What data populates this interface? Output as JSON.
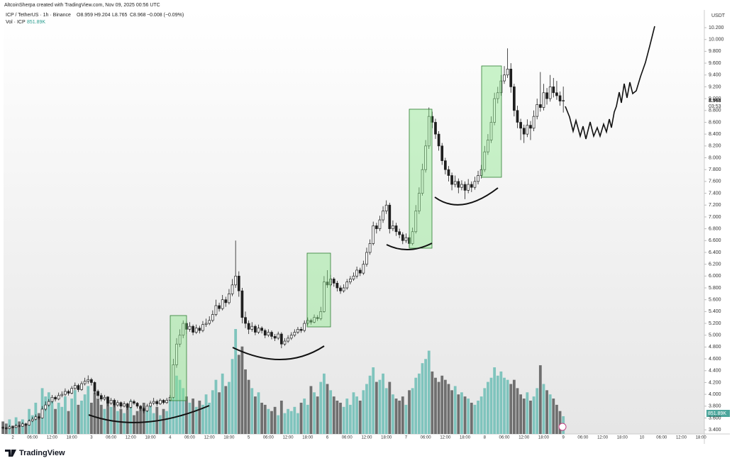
{
  "chart_data": {
    "type": "candlestick",
    "attribution": "AltcoinSherpa created with TradingView.com, Nov 09, 2025 00:56 UTC",
    "symbol": "ICP / TetherUS · 1h · Binance",
    "readout": [
      "O8.959",
      "H9.204",
      "L8.765",
      "C8.968",
      "−0.008 (−0.09%)"
    ],
    "volume_title": "Vol · ICP",
    "volume_readout": "851.89K",
    "currency": "USDT",
    "last_price_label": "8.968",
    "countdown": "03:53",
    "brand": "TradingView",
    "up_color": "#ffffff",
    "down_color": "#1e1e1e",
    "volume_up_color": "#7fc4bd",
    "volume_down_color": "#6f6f6f",
    "grid": false,
    "ylim": [
      3.33,
      10.5
    ],
    "yticks": [
      {
        "value": 3.4,
        "label": "3.400"
      },
      {
        "value": 3.6,
        "label": "3.600"
      },
      {
        "value": 3.8,
        "label": "3.800"
      },
      {
        "value": 4.0,
        "label": "4.000"
      },
      {
        "value": 4.2,
        "label": "4.200"
      },
      {
        "value": 4.4,
        "label": "4.400"
      },
      {
        "value": 4.6,
        "label": "4.600"
      },
      {
        "value": 4.8,
        "label": "4.800"
      },
      {
        "value": 5.0,
        "label": "5.000"
      },
      {
        "value": 5.2,
        "label": "5.200"
      },
      {
        "value": 5.4,
        "label": "5.400"
      },
      {
        "value": 5.6,
        "label": "5.600"
      },
      {
        "value": 5.8,
        "label": "5.800"
      },
      {
        "value": 6.0,
        "label": "6.000"
      },
      {
        "value": 6.2,
        "label": "6.200"
      },
      {
        "value": 6.4,
        "label": "6.400"
      },
      {
        "value": 6.6,
        "label": "6.600"
      },
      {
        "value": 6.8,
        "label": "6.800"
      },
      {
        "value": 7.0,
        "label": "7.000"
      },
      {
        "value": 7.2,
        "label": "7.200"
      },
      {
        "value": 7.4,
        "label": "7.400"
      },
      {
        "value": 7.6,
        "label": "7.600"
      },
      {
        "value": 7.8,
        "label": "7.800"
      },
      {
        "value": 8.0,
        "label": "8.000"
      },
      {
        "value": 8.2,
        "label": "8.200"
      },
      {
        "value": 8.4,
        "label": "8.400"
      },
      {
        "value": 8.6,
        "label": "8.600"
      },
      {
        "value": 8.8,
        "label": "8.800"
      },
      {
        "value": 9.0,
        "label": "9.000"
      },
      {
        "value": 9.2,
        "label": "9.200"
      },
      {
        "value": 9.4,
        "label": "9.400"
      },
      {
        "value": 9.6,
        "label": "9.600"
      },
      {
        "value": 9.8,
        "label": "9.800"
      },
      {
        "value": 10.0,
        "label": "10.000"
      },
      {
        "value": 10.2,
        "label": "10.200"
      }
    ],
    "xtick_labels": [
      "2",
      "06:00",
      "12:00",
      "18:00",
      "3",
      "06:00",
      "12:00",
      "18:00",
      "4",
      "06:00",
      "12:00",
      "18:00",
      "5",
      "06:00",
      "12:00",
      "18:00",
      "6",
      "06:00",
      "12:00",
      "18:00",
      "7",
      "06:00",
      "12:00",
      "18:00",
      "8",
      "06:00",
      "12:00",
      "18:00",
      "9",
      "06:00",
      "12:00",
      "18:00",
      "10",
      "06:00",
      "12:00",
      "18:00"
    ],
    "candles": [
      [
        3.44,
        3.46,
        3.41,
        3.43
      ],
      [
        3.43,
        3.45,
        3.4,
        3.42
      ],
      [
        3.42,
        3.48,
        3.41,
        3.45
      ],
      [
        3.45,
        3.47,
        3.42,
        3.44
      ],
      [
        3.44,
        3.5,
        3.43,
        3.47
      ],
      [
        3.47,
        3.49,
        3.44,
        3.46
      ],
      [
        3.46,
        3.53,
        3.45,
        3.5
      ],
      [
        3.5,
        3.52,
        3.46,
        3.48
      ],
      [
        3.48,
        3.58,
        3.47,
        3.55
      ],
      [
        3.55,
        3.62,
        3.53,
        3.58
      ],
      [
        3.58,
        3.66,
        3.56,
        3.62
      ],
      [
        3.62,
        3.64,
        3.57,
        3.6
      ],
      [
        3.6,
        3.8,
        3.59,
        3.75
      ],
      [
        3.75,
        3.88,
        3.72,
        3.82
      ],
      [
        3.82,
        3.92,
        3.79,
        3.88
      ],
      [
        3.88,
        3.99,
        3.85,
        3.95
      ],
      [
        3.95,
        3.98,
        3.88,
        3.92
      ],
      [
        3.92,
        4.03,
        3.9,
        3.98
      ],
      [
        3.98,
        4.05,
        3.95,
        4.0
      ],
      [
        4.0,
        4.1,
        3.97,
        4.05
      ],
      [
        4.05,
        4.08,
        3.98,
        4.02
      ],
      [
        4.02,
        4.14,
        4.0,
        4.1
      ],
      [
        4.1,
        4.2,
        4.07,
        4.15
      ],
      [
        4.15,
        4.18,
        4.04,
        4.08
      ],
      [
        4.08,
        4.22,
        4.06,
        4.18
      ],
      [
        4.18,
        4.28,
        4.15,
        4.22
      ],
      [
        4.22,
        4.32,
        4.18,
        4.25
      ],
      [
        4.25,
        4.28,
        4.15,
        4.2
      ],
      [
        4.2,
        4.22,
        4.0,
        4.05
      ],
      [
        4.05,
        4.08,
        3.94,
        3.98
      ],
      [
        3.98,
        4.02,
        3.88,
        3.92
      ],
      [
        3.92,
        3.99,
        3.89,
        3.95
      ],
      [
        3.95,
        3.97,
        3.8,
        3.85
      ],
      [
        3.85,
        3.94,
        3.82,
        3.9
      ],
      [
        3.9,
        3.93,
        3.78,
        3.82
      ],
      [
        3.82,
        3.9,
        3.79,
        3.86
      ],
      [
        3.86,
        3.88,
        3.76,
        3.8
      ],
      [
        3.8,
        3.88,
        3.78,
        3.84
      ],
      [
        3.84,
        3.86,
        3.74,
        3.78
      ],
      [
        3.78,
        3.92,
        3.76,
        3.88
      ],
      [
        3.88,
        3.91,
        3.82,
        3.85
      ],
      [
        3.85,
        3.87,
        3.76,
        3.8
      ],
      [
        3.8,
        3.82,
        3.72,
        3.76
      ],
      [
        3.76,
        3.79,
        3.68,
        3.72
      ],
      [
        3.72,
        3.84,
        3.7,
        3.8
      ],
      [
        3.8,
        3.89,
        3.78,
        3.85
      ],
      [
        3.85,
        3.94,
        3.82,
        3.88
      ],
      [
        3.88,
        3.91,
        3.8,
        3.84
      ],
      [
        3.84,
        3.93,
        3.82,
        3.9
      ],
      [
        3.9,
        3.92,
        3.83,
        3.86
      ],
      [
        3.86,
        3.94,
        3.84,
        3.9
      ],
      [
        3.9,
        3.99,
        3.88,
        3.95
      ],
      [
        3.95,
        4.6,
        3.93,
        4.5
      ],
      [
        4.5,
        4.95,
        4.45,
        4.85
      ],
      [
        4.85,
        5.1,
        4.8,
        5.0
      ],
      [
        5.0,
        5.25,
        4.95,
        5.2
      ],
      [
        5.2,
        5.24,
        5.02,
        5.1
      ],
      [
        5.1,
        5.22,
        5.06,
        5.15
      ],
      [
        5.15,
        5.18,
        5.0,
        5.05
      ],
      [
        5.05,
        5.18,
        5.02,
        5.12
      ],
      [
        5.12,
        5.16,
        5.03,
        5.08
      ],
      [
        5.08,
        5.24,
        5.05,
        5.18
      ],
      [
        5.18,
        5.28,
        5.14,
        5.2
      ],
      [
        5.2,
        5.32,
        5.17,
        5.25
      ],
      [
        5.25,
        5.42,
        5.22,
        5.35
      ],
      [
        5.35,
        5.6,
        5.32,
        5.5
      ],
      [
        5.5,
        5.55,
        5.4,
        5.45
      ],
      [
        5.45,
        5.68,
        5.42,
        5.6
      ],
      [
        5.6,
        5.65,
        5.48,
        5.55
      ],
      [
        5.55,
        5.78,
        5.52,
        5.7
      ],
      [
        5.7,
        5.95,
        5.66,
        5.85
      ],
      [
        5.85,
        6.6,
        5.8,
        6.0
      ],
      [
        6.0,
        6.08,
        5.65,
        5.75
      ],
      [
        5.75,
        5.8,
        5.2,
        5.3
      ],
      [
        5.3,
        5.4,
        5.12,
        5.2
      ],
      [
        5.2,
        5.25,
        5.02,
        5.1
      ],
      [
        5.1,
        5.22,
        5.06,
        5.15
      ],
      [
        5.15,
        5.18,
        5.0,
        5.05
      ],
      [
        5.05,
        5.18,
        5.02,
        5.12
      ],
      [
        5.12,
        5.15,
        5.03,
        5.08
      ],
      [
        5.08,
        5.11,
        4.95,
        5.0
      ],
      [
        5.0,
        5.1,
        4.97,
        5.05
      ],
      [
        5.05,
        5.08,
        4.93,
        4.98
      ],
      [
        4.98,
        5.02,
        4.9,
        4.95
      ],
      [
        4.95,
        5.06,
        4.92,
        5.02
      ],
      [
        5.02,
        5.05,
        4.78,
        4.85
      ],
      [
        4.85,
        4.95,
        4.82,
        4.9
      ],
      [
        4.9,
        5.0,
        4.87,
        4.95
      ],
      [
        4.95,
        5.05,
        4.92,
        5.0
      ],
      [
        5.0,
        5.1,
        4.97,
        5.05
      ],
      [
        5.05,
        5.14,
        5.02,
        5.1
      ],
      [
        5.1,
        5.14,
        5.04,
        5.08
      ],
      [
        5.08,
        5.25,
        5.05,
        5.2
      ],
      [
        5.2,
        5.3,
        5.16,
        5.25
      ],
      [
        5.25,
        5.28,
        5.18,
        5.22
      ],
      [
        5.22,
        5.35,
        5.2,
        5.3
      ],
      [
        5.3,
        5.34,
        5.24,
        5.28
      ],
      [
        5.28,
        5.48,
        5.25,
        5.4
      ],
      [
        5.4,
        6.0,
        5.38,
        5.9
      ],
      [
        5.9,
        6.1,
        5.8,
        5.85
      ],
      [
        5.85,
        6.02,
        5.82,
        5.95
      ],
      [
        5.95,
        5.98,
        5.82,
        5.88
      ],
      [
        5.88,
        5.92,
        5.74,
        5.8
      ],
      [
        5.8,
        5.84,
        5.7,
        5.75
      ],
      [
        5.75,
        5.86,
        5.72,
        5.8
      ],
      [
        5.8,
        5.95,
        5.77,
        5.9
      ],
      [
        5.9,
        6.0,
        5.86,
        5.95
      ],
      [
        5.95,
        6.06,
        5.92,
        6.0
      ],
      [
        6.0,
        6.16,
        5.96,
        6.1
      ],
      [
        6.1,
        6.14,
        6.0,
        6.05
      ],
      [
        6.05,
        6.26,
        6.02,
        6.2
      ],
      [
        6.2,
        6.48,
        6.16,
        6.4
      ],
      [
        6.4,
        6.62,
        6.36,
        6.55
      ],
      [
        6.55,
        6.92,
        6.52,
        6.85
      ],
      [
        6.85,
        6.9,
        6.72,
        6.8
      ],
      [
        6.8,
        7.02,
        6.76,
        6.95
      ],
      [
        6.95,
        7.18,
        6.9,
        7.1
      ],
      [
        7.1,
        7.28,
        7.05,
        7.2
      ],
      [
        7.2,
        7.24,
        6.72,
        6.8
      ],
      [
        6.8,
        6.94,
        6.76,
        6.85
      ],
      [
        6.85,
        6.9,
        6.68,
        6.75
      ],
      [
        6.75,
        6.8,
        6.64,
        6.7
      ],
      [
        6.7,
        6.74,
        6.54,
        6.6
      ],
      [
        6.6,
        6.72,
        6.56,
        6.65
      ],
      [
        6.65,
        6.7,
        6.48,
        6.55
      ],
      [
        6.55,
        6.82,
        6.52,
        6.75
      ],
      [
        6.75,
        7.2,
        6.72,
        7.1
      ],
      [
        7.1,
        7.5,
        7.05,
        7.4
      ],
      [
        7.4,
        7.9,
        7.36,
        7.8
      ],
      [
        7.8,
        8.3,
        7.75,
        8.2
      ],
      [
        8.2,
        8.85,
        8.15,
        8.7
      ],
      [
        8.7,
        8.78,
        8.5,
        8.6
      ],
      [
        8.6,
        8.66,
        8.32,
        8.4
      ],
      [
        8.4,
        8.45,
        8.12,
        8.2
      ],
      [
        8.2,
        8.25,
        7.88,
        7.95
      ],
      [
        7.95,
        8.0,
        7.72,
        7.8
      ],
      [
        7.8,
        7.86,
        7.6,
        7.7
      ],
      [
        7.7,
        7.75,
        7.45,
        7.55
      ],
      [
        7.55,
        7.7,
        7.5,
        7.6
      ],
      [
        7.6,
        7.65,
        7.4,
        7.5
      ],
      [
        7.5,
        7.62,
        7.45,
        7.55
      ],
      [
        7.55,
        7.6,
        7.3,
        7.45
      ],
      [
        7.45,
        7.64,
        7.4,
        7.55
      ],
      [
        7.55,
        7.6,
        7.42,
        7.5
      ],
      [
        7.5,
        7.68,
        7.46,
        7.6
      ],
      [
        7.6,
        7.78,
        7.55,
        7.7
      ],
      [
        7.7,
        7.88,
        7.65,
        7.8
      ],
      [
        7.8,
        8.2,
        7.76,
        8.1
      ],
      [
        8.1,
        8.4,
        8.05,
        8.3
      ],
      [
        8.3,
        8.7,
        8.25,
        8.6
      ],
      [
        8.6,
        9.1,
        8.55,
        9.0
      ],
      [
        9.0,
        9.2,
        8.92,
        9.1
      ],
      [
        9.1,
        9.4,
        9.05,
        9.3
      ],
      [
        9.3,
        9.55,
        9.25,
        9.4
      ],
      [
        9.4,
        9.85,
        9.35,
        9.5
      ],
      [
        9.5,
        9.6,
        9.1,
        9.2
      ],
      [
        9.2,
        9.25,
        8.7,
        8.8
      ],
      [
        8.8,
        8.88,
        8.5,
        8.6
      ],
      [
        8.6,
        8.66,
        8.3,
        8.5
      ],
      [
        8.5,
        8.56,
        8.25,
        8.4
      ],
      [
        8.4,
        8.65,
        8.35,
        8.55
      ],
      [
        8.55,
        8.62,
        8.3,
        8.5
      ],
      [
        8.5,
        8.8,
        8.45,
        8.7
      ],
      [
        8.7,
        9.0,
        8.65,
        8.9
      ],
      [
        8.9,
        9.45,
        8.78,
        8.85
      ],
      [
        8.85,
        9.25,
        8.8,
        9.1
      ],
      [
        9.1,
        9.18,
        8.9,
        9.0
      ],
      [
        9.0,
        9.4,
        8.95,
        9.2
      ],
      [
        9.2,
        9.35,
        9.02,
        9.1
      ],
      [
        9.1,
        9.3,
        8.98,
        9.05
      ],
      [
        9.05,
        9.12,
        8.88,
        8.959
      ],
      [
        8.959,
        9.204,
        8.765,
        8.968
      ]
    ],
    "volume": [
      600,
      500,
      700,
      400,
      800,
      600,
      700,
      500,
      1200,
      900,
      1500,
      1000,
      2200,
      1800,
      2000,
      1600,
      1200,
      1500,
      1300,
      1800,
      1100,
      1700,
      2100,
      1400,
      1600,
      1900,
      2300,
      1500,
      2000,
      1700,
      1400,
      1200,
      1800,
      1300,
      1500,
      1100,
      1200,
      1000,
      1400,
      1600,
      900,
      1100,
      1300,
      1500,
      1200,
      1400,
      1000,
      1300,
      900,
      1200,
      1100,
      1600,
      3200,
      2800,
      2600,
      2200,
      1800,
      1500,
      1700,
      1300,
      1600,
      1400,
      1900,
      1500,
      2100,
      2600,
      2000,
      2900,
      2300,
      2500,
      3600,
      5040,
      3800,
      4200,
      3100,
      2600,
      2200,
      1800,
      2000,
      1500,
      1400,
      1200,
      1100,
      1300,
      900,
      1600,
      1000,
      1200,
      1100,
      1300,
      1000,
      1500,
      1700,
      1400,
      2300,
      2000,
      1800,
      2500,
      2900,
      2400,
      2100,
      1800,
      1600,
      1500,
      1300,
      1700,
      1400,
      2000,
      1800,
      1600,
      2100,
      2400,
      2800,
      3200,
      2500,
      2600,
      2900,
      2200,
      2500,
      1900,
      1700,
      1600,
      1800,
      1400,
      2100,
      2200,
      2700,
      2900,
      3400,
      3600,
      4000,
      3000,
      2700,
      2500,
      2800,
      2600,
      2400,
      2100,
      2300,
      1900,
      2000,
      1800,
      1700,
      1500,
      1400,
      1600,
      1800,
      2200,
      2500,
      2700,
      3200,
      2800,
      3000,
      2700,
      2600,
      2400,
      2600,
      2200,
      1900,
      1700,
      2000,
      1600,
      1800,
      2200,
      3300,
      2400,
      2100,
      1900,
      1700,
      1400,
      1100,
      851.89
    ]
  }
}
